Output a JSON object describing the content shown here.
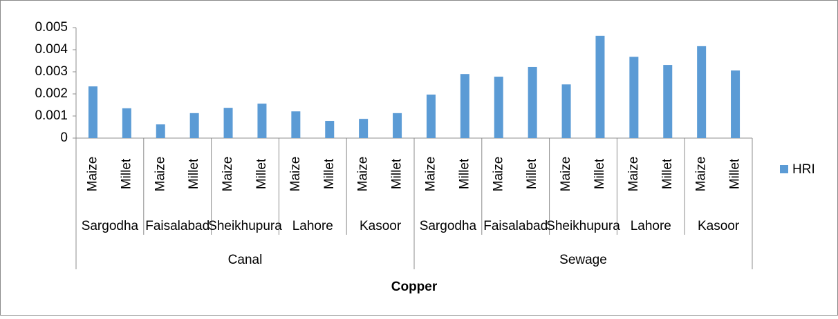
{
  "chart_data": {
    "type": "bar",
    "x_title": "Copper",
    "categories": [
      "Maize",
      "Millet",
      "Maize",
      "Millet",
      "Maize",
      "Millet",
      "Maize",
      "Millet",
      "Maize",
      "Millet",
      "Maize",
      "Millet",
      "Maize",
      "Millet",
      "Maize",
      "Millet",
      "Maize",
      "Millet",
      "Maize",
      "Millet"
    ],
    "group_labels": [
      "Sargodha",
      "Faisalabad",
      "Sheikhupura",
      "Lahore",
      "Kasoor",
      "Sargodha",
      "Faisalabad",
      "Sheikhupura",
      "Lahore",
      "Kasoor"
    ],
    "supergroup_labels": [
      "Canal",
      "Sewage"
    ],
    "series": [
      {
        "name": "HRI",
        "color": "#5b9bd5",
        "values": [
          0.00234,
          0.00135,
          0.00062,
          0.00113,
          0.00137,
          0.00156,
          0.00121,
          0.00078,
          0.00087,
          0.00113,
          0.00197,
          0.0029,
          0.00278,
          0.00322,
          0.00243,
          0.00463,
          0.00368,
          0.00331,
          0.00416,
          0.00306
        ]
      }
    ],
    "ylim": [
      0,
      0.005
    ],
    "yticks": [
      0,
      0.001,
      0.002,
      0.003,
      0.004,
      0.005
    ],
    "grid": false,
    "legend": "right"
  }
}
